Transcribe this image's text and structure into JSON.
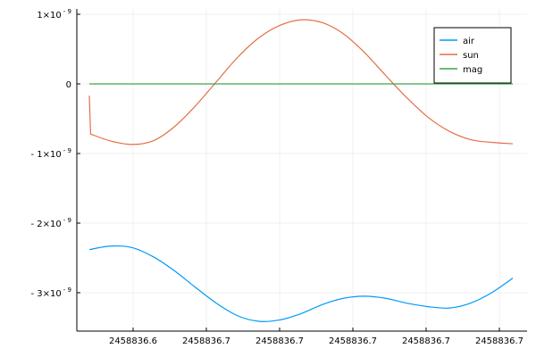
{
  "chart_data": {
    "type": "line",
    "title": "",
    "xlabel": "",
    "ylabel": "",
    "x_tick_labels": [
      "2458836.6",
      "2458836.7",
      "2458836.7",
      "2458836.7",
      "2458836.7",
      "2458836.7"
    ],
    "y_tick_labels": [
      {
        "value": 1e-09,
        "mantissa": "1×10",
        "exp": "- 9"
      },
      {
        "value": 0,
        "mantissa": "0",
        "exp": ""
      },
      {
        "value": -1e-09,
        "mantissa": "- 1×10",
        "exp": "- 9"
      },
      {
        "value": -2e-09,
        "mantissa": "- 2×10",
        "exp": "- 9"
      },
      {
        "value": -3e-09,
        "mantissa": "- 3×10",
        "exp": "- 9"
      }
    ],
    "grid": true,
    "legend_position": "top-right",
    "series": [
      {
        "name": "air",
        "color": "#009AFA",
        "points": [
          [
            0,
            -2.38e-09
          ],
          [
            0.05,
            -2.33e-09
          ],
          [
            0.1,
            -2.35e-09
          ],
          [
            0.15,
            -2.48e-09
          ],
          [
            0.2,
            -2.68e-09
          ],
          [
            0.25,
            -2.92e-09
          ],
          [
            0.3,
            -3.15e-09
          ],
          [
            0.35,
            -3.33e-09
          ],
          [
            0.4,
            -3.41e-09
          ],
          [
            0.45,
            -3.39e-09
          ],
          [
            0.5,
            -3.3e-09
          ],
          [
            0.55,
            -3.17e-09
          ],
          [
            0.6,
            -3.08e-09
          ],
          [
            0.65,
            -3.05e-09
          ],
          [
            0.7,
            -3.08e-09
          ],
          [
            0.75,
            -3.15e-09
          ],
          [
            0.8,
            -3.2e-09
          ],
          [
            0.85,
            -3.22e-09
          ],
          [
            0.9,
            -3.15e-09
          ],
          [
            0.95,
            -3e-09
          ],
          [
            1.0,
            -2.79e-09
          ]
        ]
      },
      {
        "name": "sun",
        "color": "#E36F47",
        "points": [
          [
            0,
            -1.7e-10
          ],
          [
            0.003,
            -7.2e-10
          ],
          [
            0.05,
            -8.2e-10
          ],
          [
            0.1,
            -8.7e-10
          ],
          [
            0.15,
            -8.2e-10
          ],
          [
            0.2,
            -6.2e-10
          ],
          [
            0.25,
            -3.2e-10
          ],
          [
            0.3,
            3e-11
          ],
          [
            0.35,
            3.8e-10
          ],
          [
            0.4,
            6.6e-10
          ],
          [
            0.45,
            8.4e-10
          ],
          [
            0.5,
            9.2e-10
          ],
          [
            0.55,
            8.8e-10
          ],
          [
            0.6,
            7.2e-10
          ],
          [
            0.65,
            4.5e-10
          ],
          [
            0.7,
            1.2e-10
          ],
          [
            0.75,
            -2e-10
          ],
          [
            0.8,
            -4.8e-10
          ],
          [
            0.85,
            -6.8e-10
          ],
          [
            0.9,
            -8e-10
          ],
          [
            0.95,
            -8.4e-10
          ],
          [
            1.0,
            -8.6e-10
          ]
        ]
      },
      {
        "name": "mag",
        "color": "#3EA44E",
        "points": [
          [
            0,
            0
          ],
          [
            1.0,
            0
          ]
        ]
      }
    ]
  }
}
